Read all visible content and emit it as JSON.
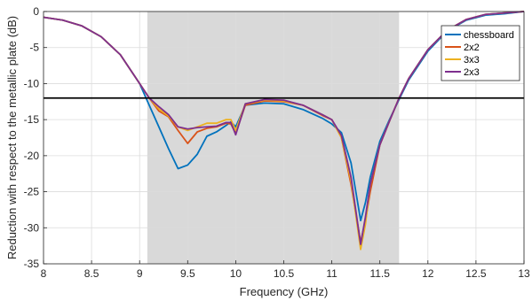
{
  "chart_data": {
    "type": "line",
    "xlabel": "Frequency (GHz)",
    "ylabel": "Reduction with respect to the metallic plate (dB)",
    "xlim": [
      8,
      13
    ],
    "ylim": [
      -35,
      0
    ],
    "xticks": [
      8,
      8.5,
      9,
      9.5,
      10,
      10.5,
      11,
      11.5,
      12,
      12.5,
      13
    ],
    "yticks": [
      0,
      -5,
      -10,
      -15,
      -20,
      -25,
      -30,
      -35
    ],
    "xtick_labels": [
      "8",
      "8.5",
      "9",
      "9.5",
      "10",
      "10.5",
      "11",
      "11.5",
      "12",
      "12.5",
      "13"
    ],
    "ytick_labels": [
      "0",
      "-5",
      "-10",
      "-15",
      "-20",
      "-25",
      "-30",
      "-35"
    ],
    "grid": true,
    "legend_position": "top-right",
    "shaded_band": {
      "x_start": 9.08,
      "x_end": 11.7,
      "color": "#d9d9d9"
    },
    "reference_line": {
      "y": -12,
      "color": "#000000"
    },
    "series": [
      {
        "name": "chessboard",
        "color": "#0072bd",
        "points": [
          [
            8,
            -0.8
          ],
          [
            8.2,
            -1.2
          ],
          [
            8.4,
            -2
          ],
          [
            8.6,
            -3.5
          ],
          [
            8.8,
            -6
          ],
          [
            9,
            -10
          ],
          [
            9.1,
            -13
          ],
          [
            9.2,
            -16
          ],
          [
            9.3,
            -19
          ],
          [
            9.4,
            -21.8
          ],
          [
            9.5,
            -21.3
          ],
          [
            9.6,
            -19.8
          ],
          [
            9.7,
            -17.3
          ],
          [
            9.8,
            -16.7
          ],
          [
            9.9,
            -15.8
          ],
          [
            9.95,
            -15.3
          ],
          [
            10,
            -16
          ],
          [
            10.1,
            -13
          ],
          [
            10.3,
            -12.7
          ],
          [
            10.5,
            -12.8
          ],
          [
            10.7,
            -13.6
          ],
          [
            10.9,
            -14.8
          ],
          [
            11,
            -15.6
          ],
          [
            11.1,
            -16.8
          ],
          [
            11.2,
            -21
          ],
          [
            11.3,
            -29
          ],
          [
            11.35,
            -26.5
          ],
          [
            11.4,
            -23
          ],
          [
            11.5,
            -18
          ],
          [
            11.6,
            -15
          ],
          [
            11.7,
            -12.2
          ],
          [
            11.8,
            -9.5
          ],
          [
            12,
            -5.5
          ],
          [
            12.2,
            -2.7
          ],
          [
            12.4,
            -1.2
          ],
          [
            12.6,
            -0.5
          ],
          [
            12.8,
            -0.3
          ],
          [
            13,
            0
          ]
        ]
      },
      {
        "name": "2x2",
        "color": "#d95319",
        "points": [
          [
            8,
            -0.8
          ],
          [
            8.2,
            -1.2
          ],
          [
            8.4,
            -2
          ],
          [
            8.6,
            -3.5
          ],
          [
            8.8,
            -6
          ],
          [
            9,
            -10
          ],
          [
            9.1,
            -12
          ],
          [
            9.2,
            -13.8
          ],
          [
            9.3,
            -14.6
          ],
          [
            9.4,
            -16.5
          ],
          [
            9.5,
            -18.3
          ],
          [
            9.6,
            -16.7
          ],
          [
            9.7,
            -16.2
          ],
          [
            9.8,
            -16
          ],
          [
            9.9,
            -15.5
          ],
          [
            9.95,
            -15.6
          ],
          [
            10,
            -16.9
          ],
          [
            10.1,
            -13
          ],
          [
            10.3,
            -12.4
          ],
          [
            10.5,
            -12.5
          ],
          [
            10.7,
            -13
          ],
          [
            10.9,
            -14.4
          ],
          [
            11,
            -15
          ],
          [
            11.1,
            -17.5
          ],
          [
            11.2,
            -24
          ],
          [
            11.3,
            -32
          ],
          [
            11.35,
            -29
          ],
          [
            11.4,
            -25
          ],
          [
            11.5,
            -18.5
          ],
          [
            11.6,
            -15.2
          ],
          [
            11.7,
            -12
          ],
          [
            11.8,
            -9.3
          ],
          [
            12,
            -5.3
          ],
          [
            12.2,
            -2.6
          ],
          [
            12.4,
            -1.1
          ],
          [
            12.6,
            -0.4
          ],
          [
            12.8,
            -0.2
          ],
          [
            13,
            0
          ]
        ]
      },
      {
        "name": "3x3",
        "color": "#edb120",
        "points": [
          [
            8,
            -0.8
          ],
          [
            8.2,
            -1.2
          ],
          [
            8.4,
            -2
          ],
          [
            8.6,
            -3.5
          ],
          [
            8.8,
            -6
          ],
          [
            9,
            -10
          ],
          [
            9.1,
            -12
          ],
          [
            9.2,
            -13.5
          ],
          [
            9.3,
            -14.5
          ],
          [
            9.4,
            -16
          ],
          [
            9.5,
            -16.5
          ],
          [
            9.6,
            -16
          ],
          [
            9.7,
            -15.5
          ],
          [
            9.8,
            -15.5
          ],
          [
            9.9,
            -15
          ],
          [
            9.95,
            -15
          ],
          [
            10,
            -16.5
          ],
          [
            10.1,
            -12.8
          ],
          [
            10.3,
            -12.3
          ],
          [
            10.5,
            -12.4
          ],
          [
            10.7,
            -13
          ],
          [
            10.9,
            -14.3
          ],
          [
            11,
            -15
          ],
          [
            11.1,
            -17.5
          ],
          [
            11.2,
            -23.5
          ],
          [
            11.3,
            -33
          ],
          [
            11.35,
            -29.5
          ],
          [
            11.4,
            -24
          ],
          [
            11.5,
            -18.5
          ],
          [
            11.6,
            -15.2
          ],
          [
            11.7,
            -12
          ],
          [
            11.8,
            -9.3
          ],
          [
            12,
            -5.3
          ],
          [
            12.2,
            -2.6
          ],
          [
            12.4,
            -1.1
          ],
          [
            12.6,
            -0.4
          ],
          [
            12.8,
            -0.2
          ],
          [
            13,
            0
          ]
        ]
      },
      {
        "name": "2x3",
        "color": "#7e2f8e",
        "points": [
          [
            8,
            -0.8
          ],
          [
            8.2,
            -1.2
          ],
          [
            8.4,
            -2
          ],
          [
            8.6,
            -3.5
          ],
          [
            8.8,
            -6
          ],
          [
            9,
            -10
          ],
          [
            9.1,
            -12
          ],
          [
            9.2,
            -13.2
          ],
          [
            9.3,
            -14.3
          ],
          [
            9.4,
            -16
          ],
          [
            9.5,
            -16.3
          ],
          [
            9.6,
            -16.1
          ],
          [
            9.7,
            -16
          ],
          [
            9.8,
            -15.9
          ],
          [
            9.9,
            -15.4
          ],
          [
            9.95,
            -15.4
          ],
          [
            10,
            -17.1
          ],
          [
            10.1,
            -12.8
          ],
          [
            10.3,
            -12.2
          ],
          [
            10.5,
            -12.3
          ],
          [
            10.7,
            -13
          ],
          [
            10.9,
            -14.3
          ],
          [
            11,
            -15
          ],
          [
            11.1,
            -17.2
          ],
          [
            11.2,
            -23
          ],
          [
            11.3,
            -32.3
          ],
          [
            11.35,
            -28.5
          ],
          [
            11.4,
            -24
          ],
          [
            11.5,
            -18.5
          ],
          [
            11.6,
            -15.2
          ],
          [
            11.7,
            -12
          ],
          [
            11.8,
            -9.3
          ],
          [
            12,
            -5.3
          ],
          [
            12.2,
            -2.6
          ],
          [
            12.4,
            -1.1
          ],
          [
            12.6,
            -0.4
          ],
          [
            12.8,
            -0.2
          ],
          [
            13,
            0
          ]
        ]
      }
    ]
  }
}
